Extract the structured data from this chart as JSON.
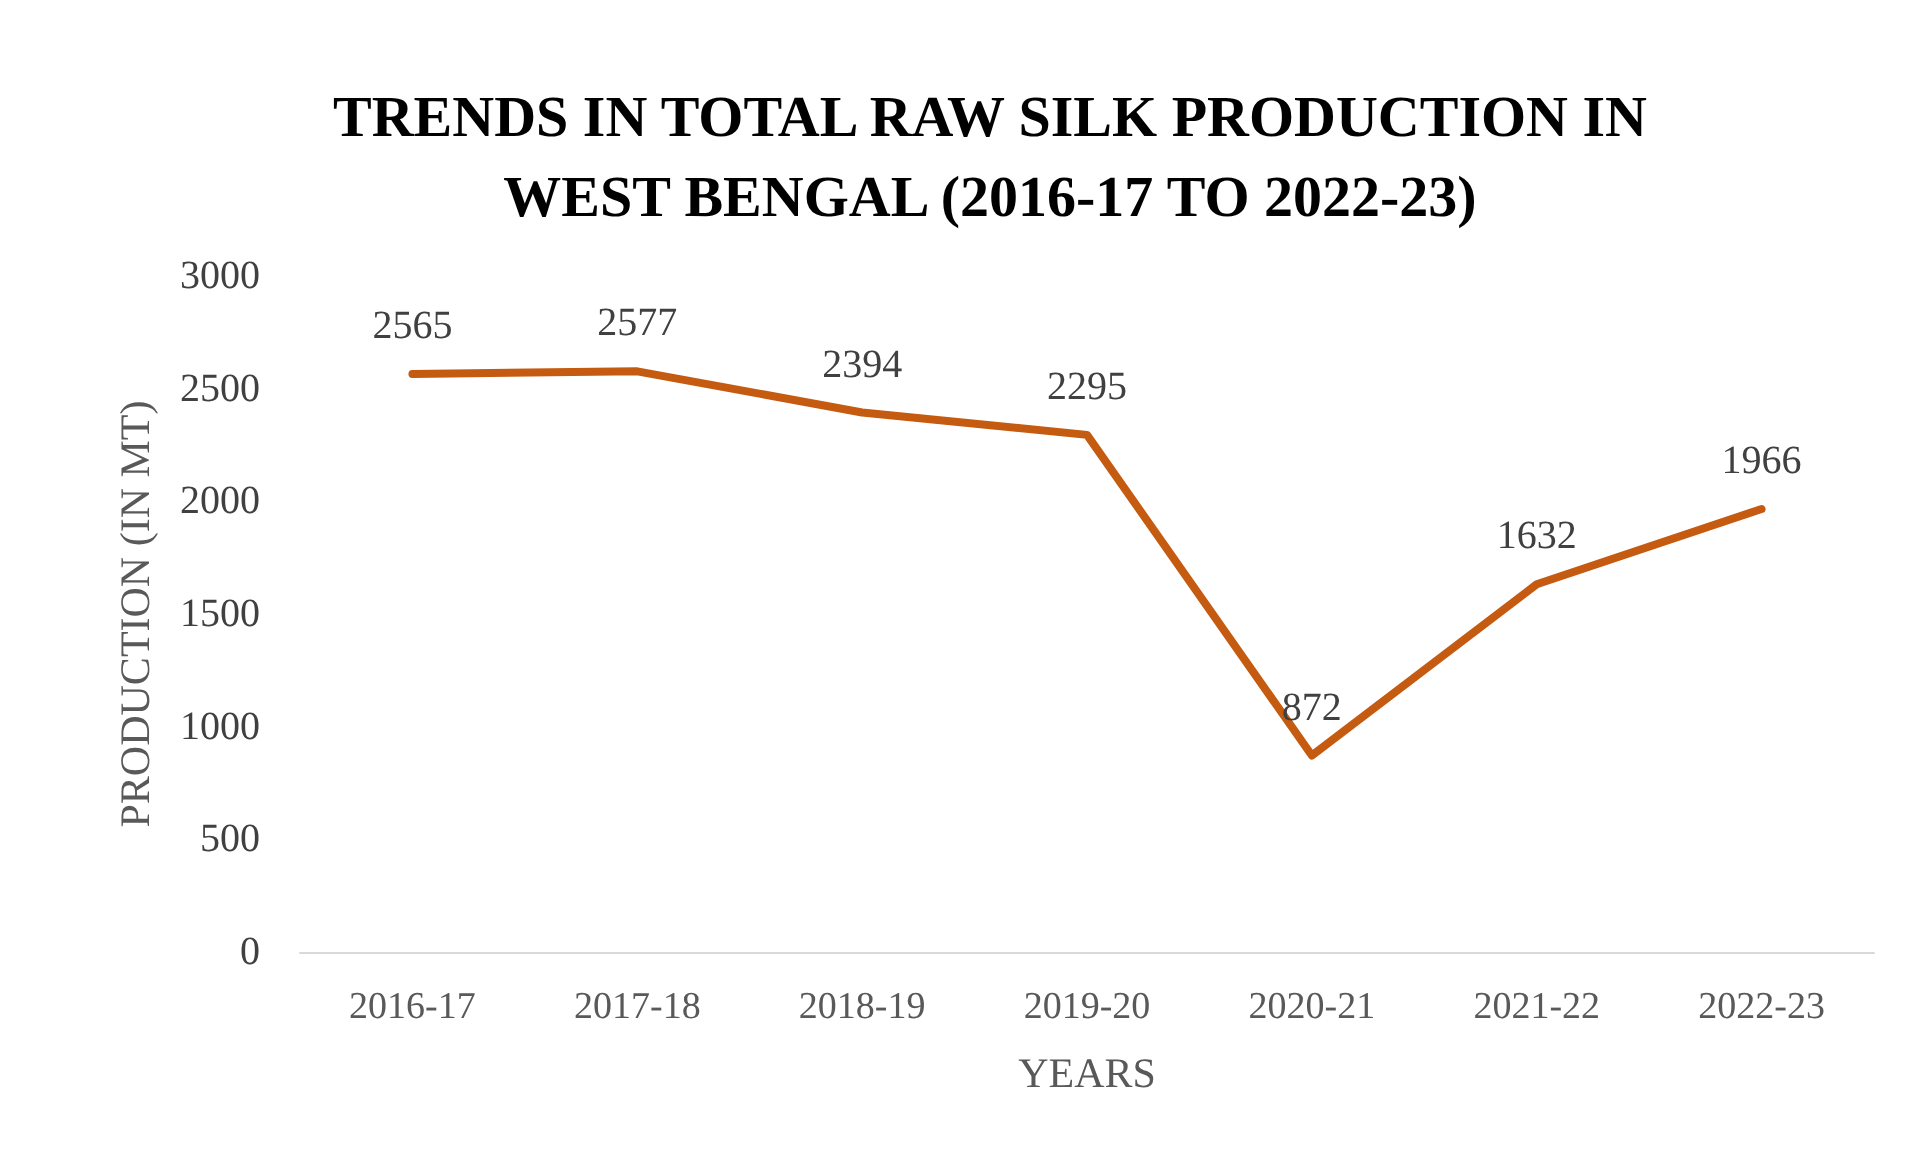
{
  "chart_data": {
    "type": "line",
    "title": "TRENDS IN TOTAL RAW SILK PRODUCTION IN\nWEST BENGAL (2016-17 TO 2022-23)",
    "xlabel": "YEARS",
    "ylabel": "PRODUCTION (IN MT)",
    "categories": [
      "2016-17",
      "2017-18",
      "2018-19",
      "2019-20",
      "2020-21",
      "2021-22",
      "2022-23"
    ],
    "series": [
      {
        "color": "#c55a11",
        "values": [
          2565,
          2577,
          2394,
          2295,
          872,
          1632,
          1966
        ]
      }
    ],
    "ylim": [
      0,
      3000
    ],
    "yticks": [
      0,
      500,
      1000,
      1500,
      2000,
      2500,
      3000
    ],
    "grid": false,
    "marker": "none",
    "line_style": "solid",
    "data_labels": true
  }
}
